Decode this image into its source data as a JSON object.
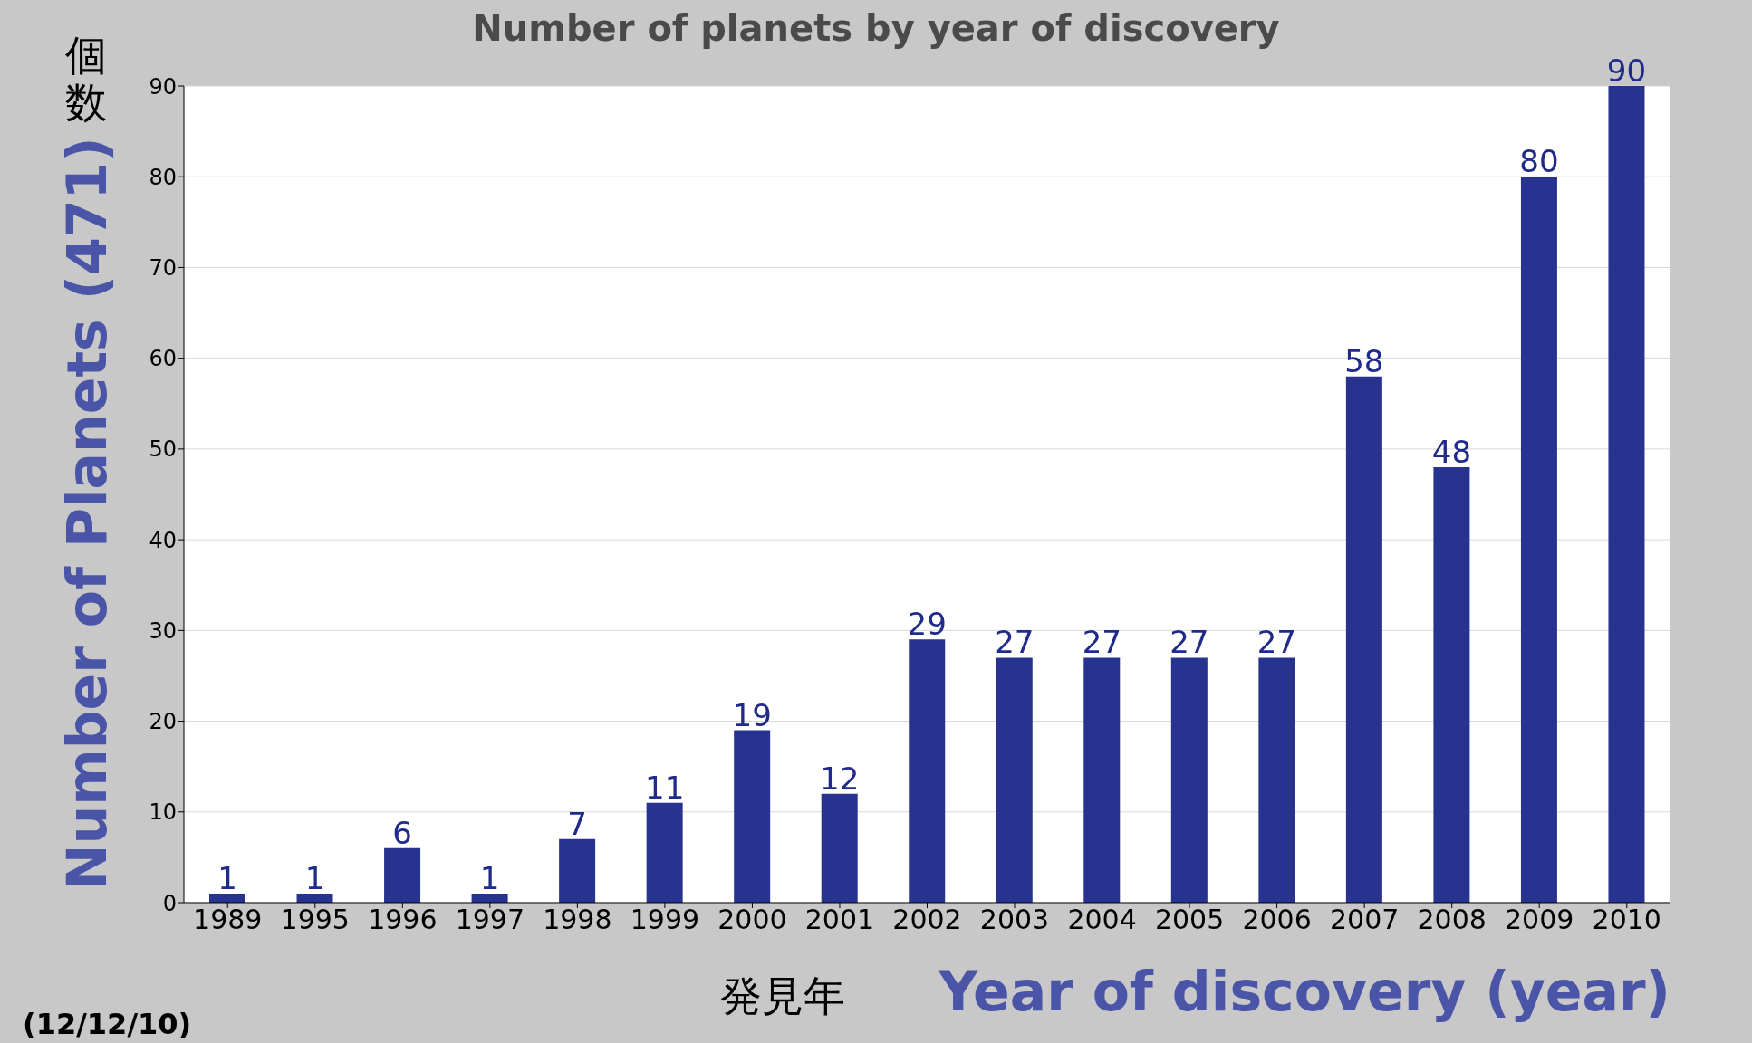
{
  "chart_data": {
    "type": "bar",
    "title": "Number of planets by year of discovery",
    "ylabel": "Number of Planets (471)",
    "xlabel": "Year of discovery (year)",
    "annotations": [
      "個数",
      "発見年",
      "(12/12/10)"
    ],
    "categories": [
      "1989",
      "1995",
      "1996",
      "1997",
      "1998",
      "1999",
      "2000",
      "2001",
      "2002",
      "2003",
      "2004",
      "2005",
      "2006",
      "2007",
      "2008",
      "2009",
      "2010"
    ],
    "values": [
      1,
      1,
      6,
      1,
      7,
      11,
      19,
      12,
      29,
      27,
      27,
      27,
      27,
      58,
      48,
      80,
      90
    ],
    "color": "#28338f",
    "ylim": [
      0,
      90
    ],
    "yticks": [
      0,
      10,
      20,
      30,
      40,
      50,
      60,
      70,
      80,
      90
    ],
    "grid": "y",
    "data_labels": true
  }
}
